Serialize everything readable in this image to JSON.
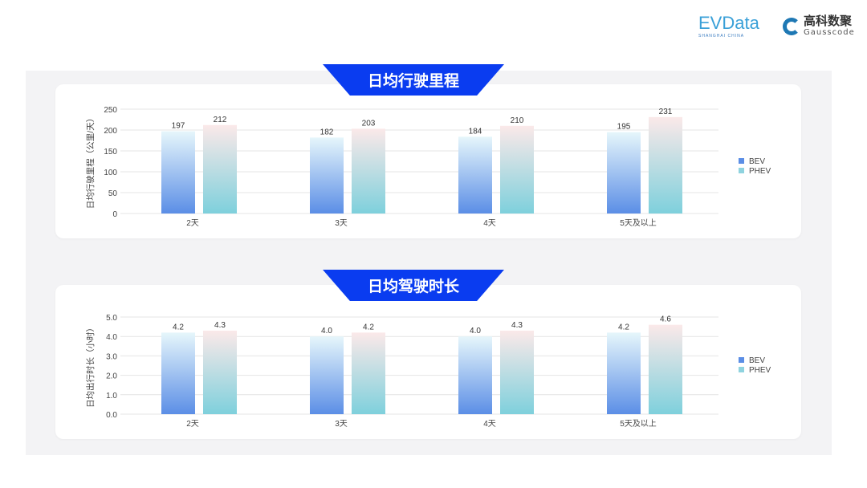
{
  "logos": {
    "evdata": "EVData",
    "evdata_sub": "SHANGHAI CHINA",
    "gauss_cn": "高科数聚",
    "gauss_en": "Gausscode"
  },
  "colors": {
    "banner": "#0a3cf0",
    "bev_top": "#e6f6fb",
    "bev_bottom": "#5b8ee6",
    "phev_top": "#fbe9e9",
    "phev_bottom": "#7ed0dc"
  },
  "chart_data": [
    {
      "type": "bar",
      "title": "日均行驶里程",
      "ylabel": "日均行驶里程（公里/天）",
      "xlabel": "",
      "categories": [
        "2天",
        "3天",
        "4天",
        "5天及以上"
      ],
      "ylim": [
        0,
        250
      ],
      "yticks": [
        "0",
        "50",
        "100",
        "150",
        "200",
        "250"
      ],
      "grid": true,
      "legend": "right",
      "series": [
        {
          "name": "BEV",
          "values": [
            197,
            182,
            184,
            195
          ]
        },
        {
          "name": "PHEV",
          "values": [
            212,
            203,
            210,
            231
          ]
        }
      ]
    },
    {
      "type": "bar",
      "title": "日均驾驶时长",
      "ylabel": "日均出行时长（小时）",
      "xlabel": "",
      "categories": [
        "2天",
        "3天",
        "4天",
        "5天及以上"
      ],
      "ylim": [
        0,
        5
      ],
      "yticks": [
        "0.0",
        "1.0",
        "2.0",
        "3.0",
        "4.0",
        "5.0"
      ],
      "grid": true,
      "legend": "right",
      "series": [
        {
          "name": "BEV",
          "values": [
            4.2,
            4.0,
            4.0,
            4.2
          ]
        },
        {
          "name": "PHEV",
          "values": [
            4.3,
            4.2,
            4.3,
            4.6
          ]
        }
      ]
    }
  ]
}
